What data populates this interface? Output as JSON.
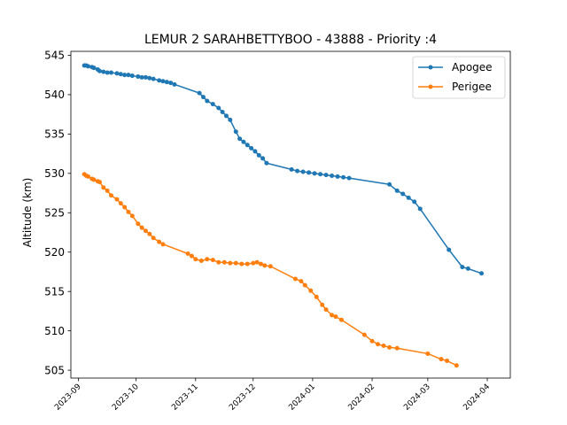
{
  "chart_data": {
    "type": "line",
    "title": "LEMUR 2 SARAHBETTYBOO - 43888 - Priority :4",
    "xlabel": "",
    "ylabel": "Altitude (km)",
    "ylim": [
      504,
      545.5
    ],
    "xlim": [
      "2023-08-28",
      "2024-04-13"
    ],
    "y_ticks": [
      505,
      510,
      515,
      520,
      525,
      530,
      535,
      540,
      545
    ],
    "x_ticks": [
      "2023-09",
      "2023-10",
      "2023-11",
      "2023-12",
      "2024-01",
      "2024-02",
      "2024-03",
      "2024-04"
    ],
    "legend_position": "top-right",
    "grid": false,
    "series": [
      {
        "name": "Apogee",
        "color": "#1f77b4",
        "points": [
          [
            "2023-09-04",
            543.7
          ],
          [
            "2023-09-05",
            543.7
          ],
          [
            "2023-09-06",
            543.6
          ],
          [
            "2023-09-08",
            543.5
          ],
          [
            "2023-09-09",
            543.4
          ],
          [
            "2023-09-11",
            543.2
          ],
          [
            "2023-09-12",
            543.0
          ],
          [
            "2023-09-14",
            542.9
          ],
          [
            "2023-09-16",
            542.8
          ],
          [
            "2023-09-18",
            542.8
          ],
          [
            "2023-09-21",
            542.7
          ],
          [
            "2023-09-23",
            542.6
          ],
          [
            "2023-09-25",
            542.5
          ],
          [
            "2023-09-27",
            542.5
          ],
          [
            "2023-09-29",
            542.4
          ],
          [
            "2023-10-02",
            542.3
          ],
          [
            "2023-10-04",
            542.2
          ],
          [
            "2023-10-06",
            542.2
          ],
          [
            "2023-10-08",
            542.1
          ],
          [
            "2023-10-10",
            542.0
          ],
          [
            "2023-10-13",
            541.8
          ],
          [
            "2023-10-15",
            541.7
          ],
          [
            "2023-10-17",
            541.6
          ],
          [
            "2023-10-19",
            541.5
          ],
          [
            "2023-10-21",
            541.3
          ],
          [
            "2023-11-03",
            540.2
          ],
          [
            "2023-11-05",
            539.7
          ],
          [
            "2023-11-07",
            539.2
          ],
          [
            "2023-11-10",
            538.8
          ],
          [
            "2023-11-13",
            538.3
          ],
          [
            "2023-11-15",
            537.8
          ],
          [
            "2023-11-17",
            537.3
          ],
          [
            "2023-11-19",
            536.8
          ],
          [
            "2023-11-22",
            535.3
          ],
          [
            "2023-11-24",
            534.4
          ],
          [
            "2023-11-26",
            534.0
          ],
          [
            "2023-11-28",
            533.6
          ],
          [
            "2023-11-30",
            533.2
          ],
          [
            "2023-12-02",
            532.8
          ],
          [
            "2023-12-04",
            532.3
          ],
          [
            "2023-12-06",
            531.9
          ],
          [
            "2023-12-08",
            531.3
          ],
          [
            "2023-12-21",
            530.5
          ],
          [
            "2023-12-24",
            530.3
          ],
          [
            "2023-12-27",
            530.2
          ],
          [
            "2023-12-30",
            530.1
          ],
          [
            "2024-01-02",
            530.0
          ],
          [
            "2024-01-05",
            529.9
          ],
          [
            "2024-01-08",
            529.8
          ],
          [
            "2024-01-11",
            529.7
          ],
          [
            "2024-01-14",
            529.6
          ],
          [
            "2024-01-17",
            529.5
          ],
          [
            "2024-01-20",
            529.4
          ],
          [
            "2024-02-10",
            528.6
          ],
          [
            "2024-02-14",
            527.8
          ],
          [
            "2024-02-17",
            527.4
          ],
          [
            "2024-02-20",
            526.9
          ],
          [
            "2024-02-23",
            526.4
          ],
          [
            "2024-02-26",
            525.5
          ],
          [
            "2024-03-12",
            520.3
          ],
          [
            "2024-03-19",
            518.1
          ],
          [
            "2024-03-22",
            517.9
          ],
          [
            "2024-03-29",
            517.3
          ]
        ]
      },
      {
        "name": "Perigee",
        "color": "#ff7f0e",
        "points": [
          [
            "2023-09-04",
            529.9
          ],
          [
            "2023-09-05",
            529.7
          ],
          [
            "2023-09-06",
            529.6
          ],
          [
            "2023-09-08",
            529.3
          ],
          [
            "2023-09-09",
            529.2
          ],
          [
            "2023-09-11",
            529.0
          ],
          [
            "2023-09-12",
            528.9
          ],
          [
            "2023-09-14",
            528.2
          ],
          [
            "2023-09-16",
            527.8
          ],
          [
            "2023-09-18",
            527.2
          ],
          [
            "2023-09-21",
            526.7
          ],
          [
            "2023-09-23",
            526.2
          ],
          [
            "2023-09-25",
            525.7
          ],
          [
            "2023-09-27",
            525.1
          ],
          [
            "2023-09-29",
            524.6
          ],
          [
            "2023-10-02",
            523.6
          ],
          [
            "2023-10-04",
            523.1
          ],
          [
            "2023-10-06",
            522.7
          ],
          [
            "2023-10-08",
            522.3
          ],
          [
            "2023-10-10",
            521.8
          ],
          [
            "2023-10-13",
            521.3
          ],
          [
            "2023-10-15",
            521.0
          ],
          [
            "2023-10-28",
            519.8
          ],
          [
            "2023-10-30",
            519.5
          ],
          [
            "2023-11-01",
            519.1
          ],
          [
            "2023-11-04",
            518.9
          ],
          [
            "2023-11-07",
            519.1
          ],
          [
            "2023-11-10",
            519.0
          ],
          [
            "2023-11-13",
            518.7
          ],
          [
            "2023-11-16",
            518.7
          ],
          [
            "2023-11-19",
            518.6
          ],
          [
            "2023-11-22",
            518.6
          ],
          [
            "2023-11-25",
            518.5
          ],
          [
            "2023-11-28",
            518.5
          ],
          [
            "2023-12-01",
            518.6
          ],
          [
            "2023-12-03",
            518.7
          ],
          [
            "2023-12-05",
            518.5
          ],
          [
            "2023-12-07",
            518.3
          ],
          [
            "2023-12-10",
            518.2
          ],
          [
            "2023-12-23",
            516.6
          ],
          [
            "2023-12-26",
            516.3
          ],
          [
            "2023-12-28",
            515.8
          ],
          [
            "2023-12-31",
            515.1
          ],
          [
            "2024-01-03",
            514.3
          ],
          [
            "2024-01-06",
            513.3
          ],
          [
            "2024-01-08",
            512.7
          ],
          [
            "2024-01-11",
            512.0
          ],
          [
            "2024-01-13",
            511.8
          ],
          [
            "2024-01-16",
            511.4
          ],
          [
            "2024-01-28",
            509.5
          ],
          [
            "2024-02-01",
            508.7
          ],
          [
            "2024-02-04",
            508.3
          ],
          [
            "2024-02-07",
            508.1
          ],
          [
            "2024-02-10",
            507.9
          ],
          [
            "2024-02-14",
            507.8
          ],
          [
            "2024-03-01",
            507.1
          ],
          [
            "2024-03-08",
            506.4
          ],
          [
            "2024-03-11",
            506.2
          ],
          [
            "2024-03-16",
            505.6
          ]
        ]
      }
    ]
  }
}
